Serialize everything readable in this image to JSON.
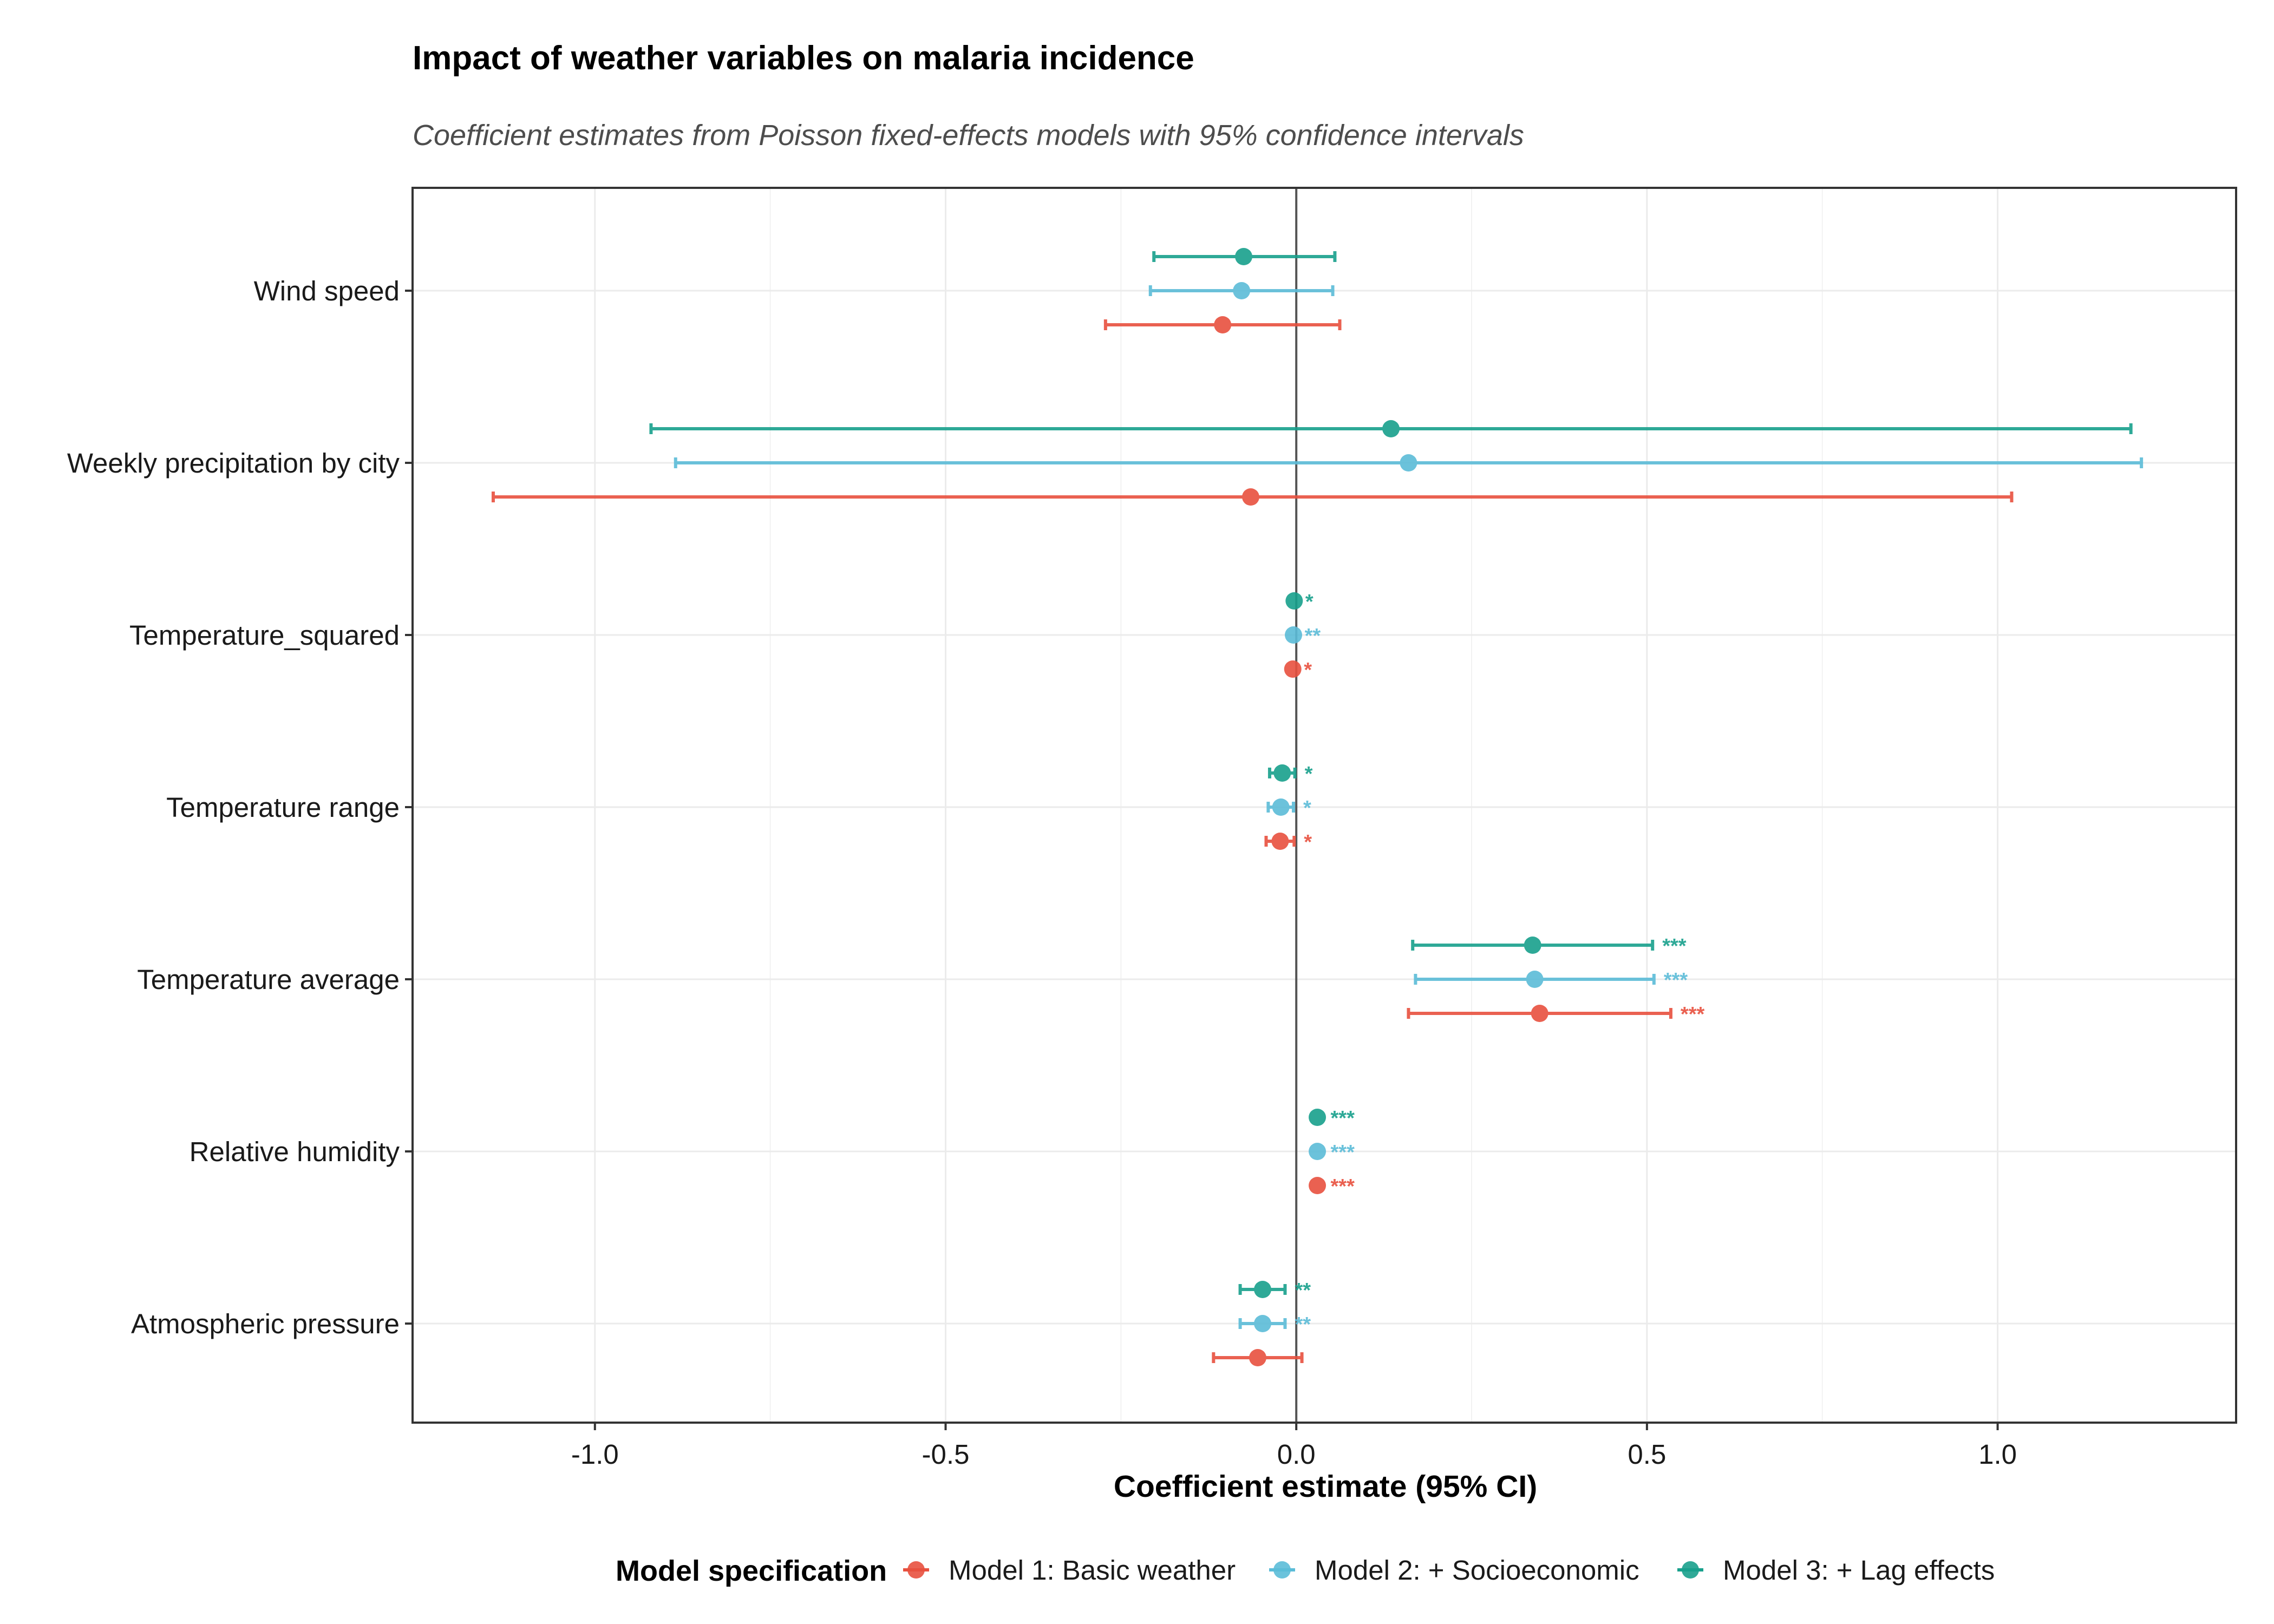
{
  "chart_data": {
    "type": "scatter",
    "subtype": "coefficient-forest-plot",
    "title": "Impact of weather variables on malaria incidence",
    "subtitle": "Coefficient estimates from Poisson fixed-effects models with 95% confidence intervals",
    "xlabel": "Coefficient estimate (95% CI)",
    "ylabel": "",
    "xlim": [
      -1.26,
      1.34
    ],
    "x_ticks": [
      -1.0,
      -0.5,
      0.0,
      0.5,
      1.0
    ],
    "x_tick_labels": [
      "-1.0",
      "-0.5",
      "0.0",
      "0.5",
      "1.0"
    ],
    "reference_line_x": 0,
    "grid": true,
    "categories": [
      "Wind speed",
      "Weekly precipitation by city",
      "Temperature_squared",
      "Temperature range",
      "Temperature average",
      "Relative humidity",
      "Atmospheric pressure"
    ],
    "legend": {
      "title": "Model specification",
      "position": "bottom",
      "entries": [
        "Model 1: Basic weather",
        "Model 2: + Socioeconomic",
        "Model 3: + Lag effects"
      ]
    },
    "series": [
      {
        "name": "Model 1: Basic weather",
        "color": "#E8513F",
        "estimate": [
          -0.105,
          -0.065,
          -0.005,
          -0.023,
          0.347,
          0.03,
          -0.055
        ],
        "ci_low": [
          -0.272,
          -1.145,
          -0.007,
          -0.043,
          0.16,
          0.025,
          -0.118
        ],
        "ci_high": [
          0.062,
          1.02,
          -0.003,
          -0.003,
          0.534,
          0.035,
          0.008
        ],
        "significance": [
          "",
          "",
          "*",
          "*",
          "***",
          "***",
          ""
        ]
      },
      {
        "name": "Model 2: + Socioeconomic",
        "color": "#5BBCD8",
        "estimate": [
          -0.078,
          0.16,
          -0.004,
          -0.022,
          0.34,
          0.03,
          -0.048
        ],
        "ci_low": [
          -0.208,
          -0.885,
          -0.006,
          -0.04,
          0.17,
          0.025,
          -0.08
        ],
        "ci_high": [
          0.052,
          1.205,
          -0.002,
          -0.004,
          0.51,
          0.035,
          -0.016
        ],
        "significance": [
          "",
          "",
          "**",
          "*",
          "***",
          "***",
          "**"
        ]
      },
      {
        "name": "Model 3: + Lag effects",
        "color": "#18A08C",
        "estimate": [
          -0.075,
          0.135,
          -0.003,
          -0.02,
          0.337,
          0.03,
          -0.048
        ],
        "ci_low": [
          -0.203,
          -0.92,
          -0.005,
          -0.038,
          0.166,
          0.025,
          -0.08
        ],
        "ci_high": [
          0.055,
          1.19,
          -0.001,
          -0.002,
          0.508,
          0.035,
          -0.016
        ],
        "significance": [
          "",
          "",
          "*",
          "*",
          "***",
          "***",
          "**"
        ]
      }
    ]
  }
}
